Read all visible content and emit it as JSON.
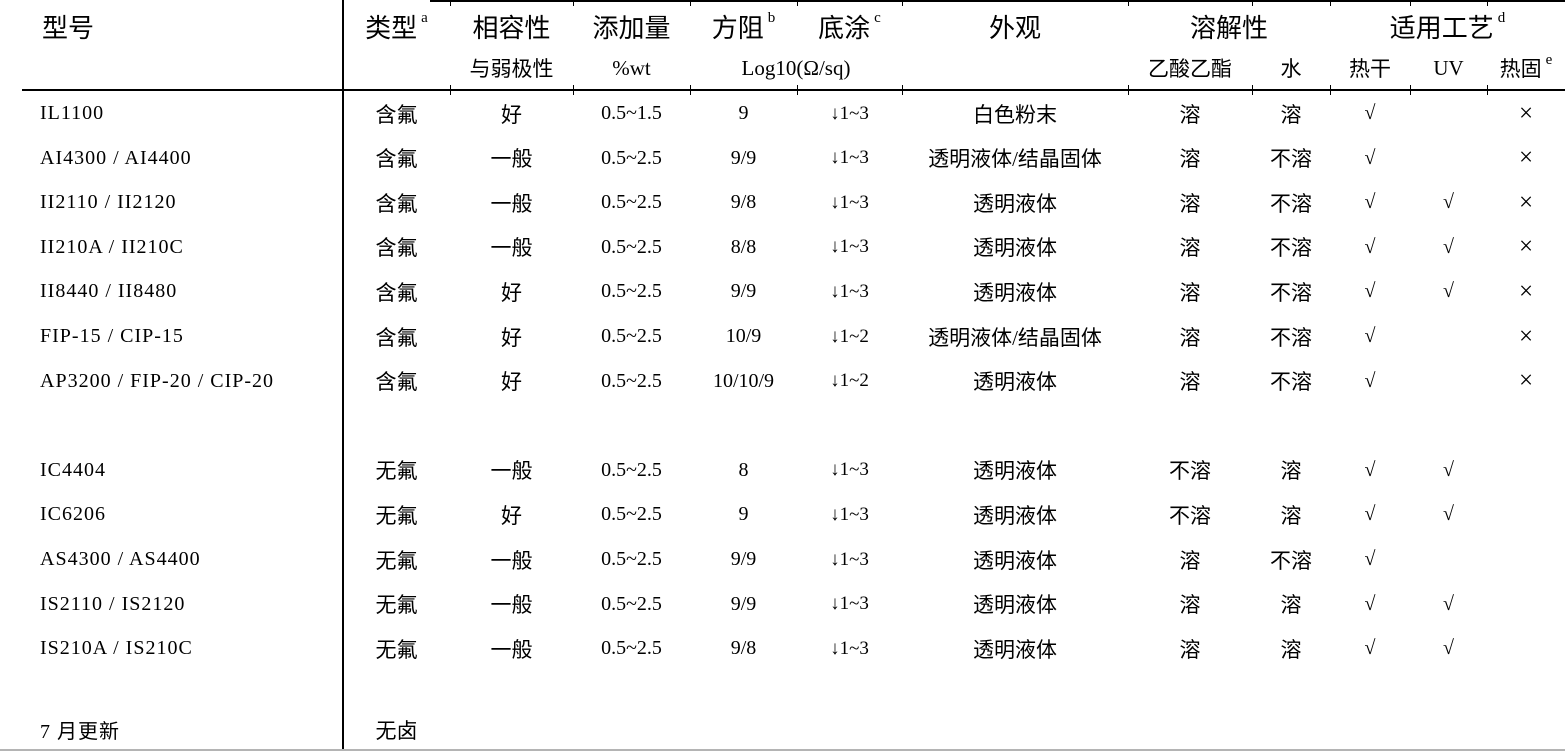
{
  "table": {
    "header": {
      "model": "型号",
      "type": "类型",
      "type_sup": "a",
      "compatibility": "相容性",
      "compatibility_sub": "与弱极性",
      "addition": "添加量",
      "addition_sub": "%wt",
      "resistance": "方阻",
      "resistance_sup": "b",
      "resistance_unit": "Log10(Ω/sq)",
      "primer": "底涂",
      "primer_sup": "c",
      "appearance": "外观",
      "solubility": "溶解性",
      "solubility_ea": "乙酸乙酯",
      "solubility_water": "水",
      "process": "适用工艺",
      "process_sup": "d",
      "process_heat": "热干",
      "process_uv": "UV",
      "process_thermoset": "热固",
      "process_thermoset_sup": "e"
    },
    "rows": [
      [
        "IL1100",
        "含氟",
        "好",
        "0.5~1.5",
        "9",
        "↓1~3",
        "白色粉末",
        "溶",
        "溶",
        "√",
        "",
        "×"
      ],
      [
        "AI4300 / AI4400",
        "含氟",
        "一般",
        "0.5~2.5",
        "9/9",
        "↓1~3",
        "透明液体/结晶固体",
        "溶",
        "不溶",
        "√",
        "",
        "×"
      ],
      [
        "II2110 / II2120",
        "含氟",
        "一般",
        "0.5~2.5",
        "9/8",
        "↓1~3",
        "透明液体",
        "溶",
        "不溶",
        "√",
        "√",
        "×"
      ],
      [
        "II210A / II210C",
        "含氟",
        "一般",
        "0.5~2.5",
        "8/8",
        "↓1~3",
        "透明液体",
        "溶",
        "不溶",
        "√",
        "√",
        "×"
      ],
      [
        "II8440 / II8480",
        "含氟",
        "好",
        "0.5~2.5",
        "9/9",
        "↓1~3",
        "透明液体",
        "溶",
        "不溶",
        "√",
        "√",
        "×"
      ],
      [
        "FIP-15 / CIP-15",
        "含氟",
        "好",
        "0.5~2.5",
        "10/9",
        "↓1~2",
        "透明液体/结晶固体",
        "溶",
        "不溶",
        "√",
        "",
        "×"
      ],
      [
        "AP3200 / FIP-20 / CIP-20",
        "含氟",
        "好",
        "0.5~2.5",
        "10/10/9",
        "↓1~2",
        "透明液体",
        "溶",
        "不溶",
        "√",
        "",
        "×"
      ],
      [
        "IC4404",
        "无氟",
        "一般",
        "0.5~2.5",
        "8",
        "↓1~3",
        "透明液体",
        "不溶",
        "溶",
        "√",
        "√",
        ""
      ],
      [
        "IC6206",
        "无氟",
        "好",
        "0.5~2.5",
        "9",
        "↓1~3",
        "透明液体",
        "不溶",
        "溶",
        "√",
        "√",
        ""
      ],
      [
        "AS4300 / AS4400",
        "无氟",
        "一般",
        "0.5~2.5",
        "9/9",
        "↓1~3",
        "透明液体",
        "溶",
        "不溶",
        "√",
        "",
        ""
      ],
      [
        "IS2110 / IS2120",
        "无氟",
        "一般",
        "0.5~2.5",
        "9/9",
        "↓1~3",
        "透明液体",
        "溶",
        "溶",
        "√",
        "√",
        ""
      ],
      [
        "IS210A / IS210C",
        "无氟",
        "一般",
        "0.5~2.5",
        "9/8",
        "↓1~3",
        "透明液体",
        "溶",
        "溶",
        "√",
        "√",
        ""
      ],
      [
        "7 月更新",
        "无卤",
        "",
        "",
        "",
        "",
        "",
        "",
        "",
        "",
        "",
        ""
      ]
    ]
  },
  "colors": {
    "text": "#000000",
    "rule": "#000000",
    "bottom_rule": "#b4b4b4",
    "background": "#ffffff"
  }
}
